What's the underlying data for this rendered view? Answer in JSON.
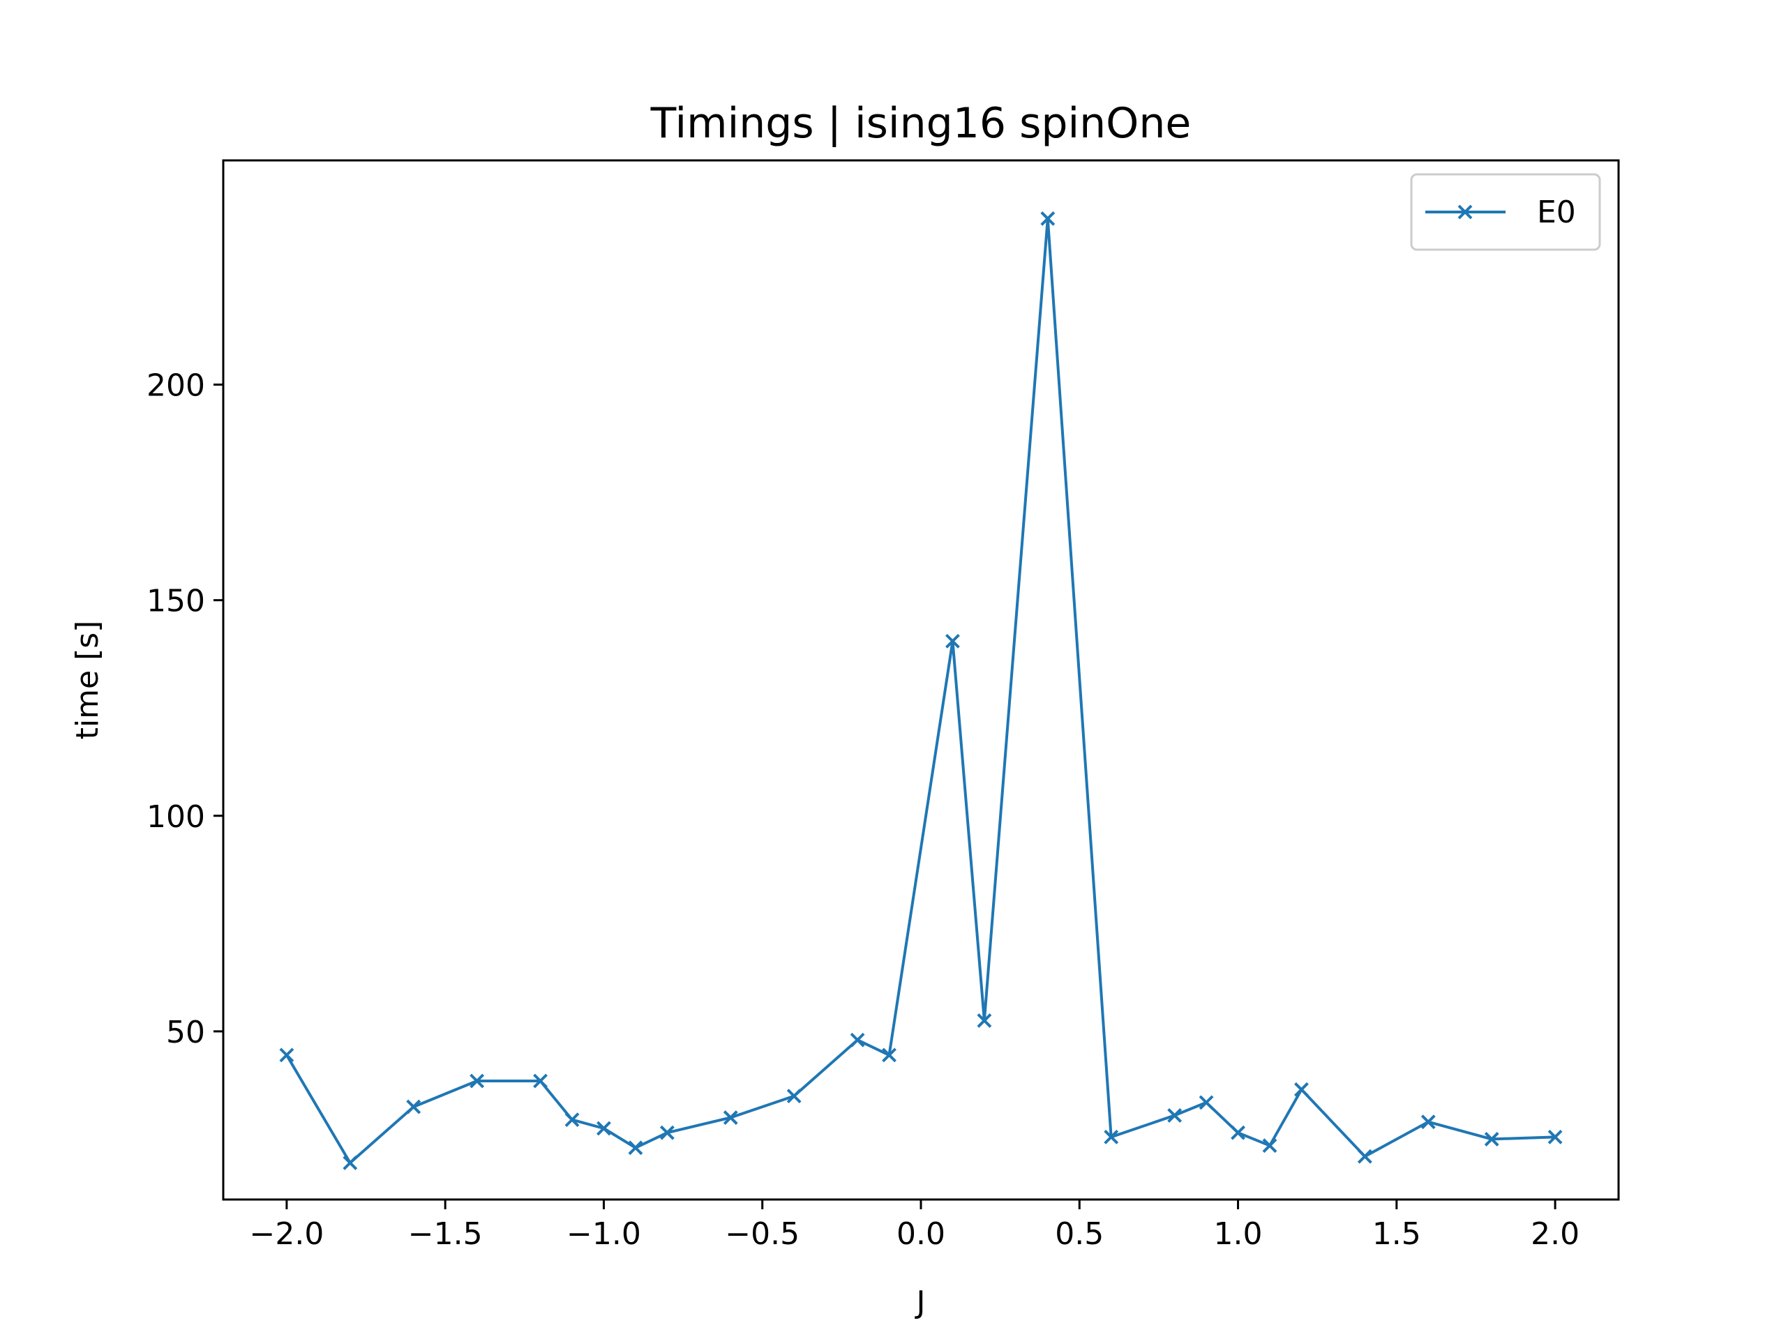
{
  "chart_data": {
    "type": "line",
    "title": "Timings | ising16 spinOne",
    "xlabel": "J",
    "ylabel": "time [s]",
    "xlim": [
      -2.2,
      2.2
    ],
    "ylim": [
      11,
      252
    ],
    "xticks": [
      -2.0,
      -1.5,
      -1.0,
      -0.5,
      0.0,
      0.5,
      1.0,
      1.5,
      2.0
    ],
    "xtick_labels": [
      "−2.0",
      "−1.5",
      "−1.0",
      "−0.5",
      "0.0",
      "0.5",
      "1.0",
      "1.5",
      "2.0"
    ],
    "yticks": [
      50,
      100,
      150,
      200
    ],
    "ytick_labels": [
      "50",
      "100",
      "150",
      "200"
    ],
    "grid": false,
    "legend_position": "top-right",
    "series": [
      {
        "name": "E0",
        "color": "#1f77b4",
        "marker": "x",
        "x": [
          -2.0,
          -1.8,
          -1.6,
          -1.4,
          -1.2,
          -1.1,
          -1.0,
          -0.9,
          -0.8,
          -0.6,
          -0.4,
          -0.2,
          -0.1,
          0.1,
          0.2,
          0.4,
          0.6,
          0.8,
          0.9,
          1.0,
          1.1,
          1.2,
          1.4,
          1.6,
          1.8,
          2.0
        ],
        "y": [
          44.5,
          19.5,
          32.5,
          38.5,
          38.5,
          29.5,
          27.5,
          23.0,
          26.5,
          30.0,
          35.0,
          48.0,
          44.5,
          140.5,
          52.5,
          238.5,
          25.5,
          30.5,
          33.5,
          26.5,
          23.5,
          36.5,
          21.0,
          29.0,
          25.0,
          25.5
        ]
      }
    ]
  }
}
